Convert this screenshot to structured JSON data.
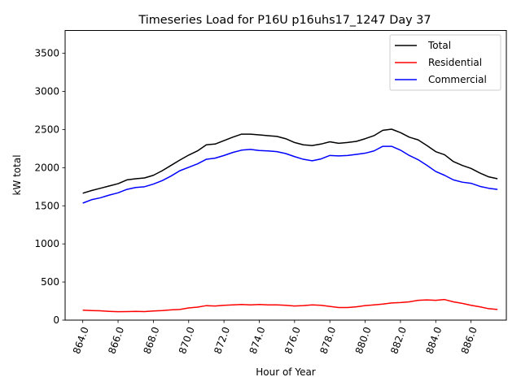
{
  "chart_data": {
    "type": "line",
    "title": "Timeseries Load for P16U p16uhs17_1247  Day 37",
    "xlabel": "Hour of Year",
    "ylabel": "kW total",
    "xlim": [
      863.0,
      888.0
    ],
    "ylim": [
      0,
      3800
    ],
    "xticks": [
      864.0,
      866.0,
      868.0,
      870.0,
      872.0,
      874.0,
      876.0,
      878.0,
      880.0,
      882.0,
      884.0,
      886.0
    ],
    "xtick_labels": [
      "864.0",
      "866.0",
      "868.0",
      "870.0",
      "872.0",
      "874.0",
      "876.0",
      "878.0",
      "880.0",
      "882.0",
      "884.0",
      "886.0"
    ],
    "yticks": [
      0,
      500,
      1000,
      1500,
      2000,
      2500,
      3000,
      3500
    ],
    "ytick_labels": [
      "0",
      "500",
      "1000",
      "1500",
      "2000",
      "2500",
      "3000",
      "3500"
    ],
    "legend_position": "top-right",
    "x": [
      864.0,
      864.5,
      865.0,
      865.5,
      866.0,
      866.5,
      867.0,
      867.5,
      868.0,
      868.5,
      869.0,
      869.5,
      870.0,
      870.5,
      871.0,
      871.5,
      872.0,
      872.5,
      873.0,
      873.5,
      874.0,
      874.5,
      875.0,
      875.5,
      876.0,
      876.5,
      877.0,
      877.5,
      878.0,
      878.5,
      879.0,
      879.5,
      880.0,
      880.5,
      881.0,
      881.5,
      882.0,
      882.5,
      883.0,
      883.5,
      884.0,
      884.5,
      885.0,
      885.5,
      886.0,
      886.5,
      887.0,
      887.5
    ],
    "series": [
      {
        "name": "Total",
        "color": "#000000",
        "values": [
          1665,
          1700,
          1730,
          1760,
          1790,
          1840,
          1855,
          1865,
          1900,
          1960,
          2030,
          2100,
          2165,
          2220,
          2300,
          2310,
          2355,
          2400,
          2440,
          2440,
          2430,
          2420,
          2410,
          2380,
          2330,
          2300,
          2290,
          2310,
          2340,
          2320,
          2330,
          2345,
          2380,
          2420,
          2490,
          2505,
          2460,
          2400,
          2365,
          2290,
          2210,
          2170,
          2080,
          2030,
          1990,
          1930,
          1880,
          1855
        ]
      },
      {
        "name": "Residential",
        "color": "#ff0000",
        "values": [
          130,
          125,
          122,
          115,
          110,
          112,
          115,
          112,
          120,
          125,
          135,
          140,
          160,
          170,
          190,
          185,
          195,
          200,
          205,
          200,
          205,
          200,
          200,
          195,
          185,
          190,
          200,
          195,
          180,
          165,
          165,
          175,
          190,
          200,
          210,
          225,
          230,
          240,
          260,
          265,
          260,
          270,
          240,
          220,
          195,
          175,
          150,
          140
        ]
      },
      {
        "name": "Commercial",
        "color": "#0000ff",
        "values": [
          1535,
          1580,
          1605,
          1640,
          1670,
          1715,
          1740,
          1750,
          1785,
          1830,
          1890,
          1960,
          2005,
          2050,
          2110,
          2125,
          2160,
          2200,
          2230,
          2240,
          2225,
          2220,
          2210,
          2185,
          2145,
          2110,
          2090,
          2115,
          2160,
          2155,
          2160,
          2175,
          2190,
          2220,
          2280,
          2280,
          2230,
          2160,
          2105,
          2030,
          1950,
          1900,
          1840,
          1810,
          1795,
          1755,
          1730,
          1715
        ]
      }
    ]
  }
}
